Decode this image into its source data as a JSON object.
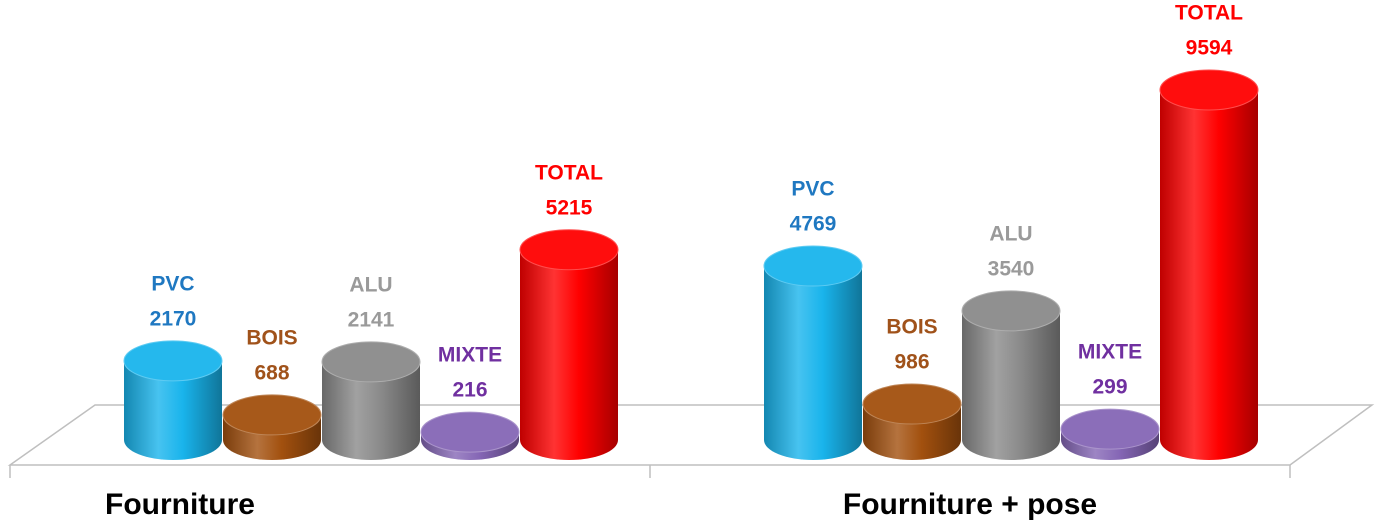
{
  "chart_data": {
    "type": "cylinder-bar",
    "categories": [
      "Fourniture",
      "Fourniture + pose"
    ],
    "series": [
      {
        "name": "PVC",
        "color": "#19b4ec",
        "label_color": "#1f78c1",
        "values": [
          2170,
          4769
        ]
      },
      {
        "name": "BOIS",
        "color": "#a2500e",
        "label_color": "#a0521a",
        "values": [
          688,
          986
        ]
      },
      {
        "name": "ALU",
        "color": "#8a8a8a",
        "label_color": "#9a9a9a",
        "values": [
          2141,
          3540
        ]
      },
      {
        "name": "MIXTE",
        "color": "#8566b5",
        "label_color": "#7030a0",
        "values": [
          216,
          299
        ]
      },
      {
        "name": "TOTAL",
        "color": "#ff0000",
        "label_color": "#ff0000",
        "values": [
          5215,
          9594
        ]
      }
    ]
  }
}
